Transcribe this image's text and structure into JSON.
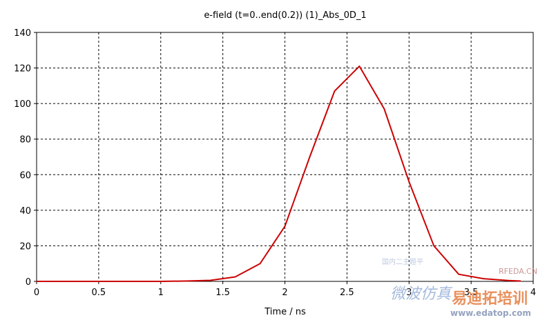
{
  "chart_data": {
    "type": "line",
    "title": "e-field (t=0..end(0.2)) (1)_Abs_0D_1",
    "xlabel": "Time / ns",
    "ylabel": "",
    "xlim": [
      0,
      4
    ],
    "ylim": [
      0,
      140
    ],
    "xticks": [
      "0",
      "0.5",
      "1",
      "1.5",
      "2",
      "2.5",
      "3",
      "3.5",
      "4"
    ],
    "yticks": [
      "0",
      "20",
      "40",
      "60",
      "80",
      "100",
      "120",
      "140"
    ],
    "grid": true,
    "series": [
      {
        "color": "#cc0000",
        "x": [
          0,
          0.5,
          1.0,
          1.2,
          1.4,
          1.6,
          1.8,
          2.0,
          2.2,
          2.4,
          2.6,
          2.8,
          3.0,
          3.2,
          3.4,
          3.6,
          3.8,
          3.9
        ],
        "y": [
          0,
          0,
          0,
          0.2,
          0.6,
          2.5,
          10,
          31,
          70,
          107,
          121,
          97,
          56,
          20,
          4,
          1.5,
          0.5,
          0.2
        ]
      }
    ]
  },
  "watermark": {
    "left_glyphs": "微波仿真",
    "small_text": "国内二主题平",
    "site_name": "RFEDA.CN",
    "brand_cn": "易迪拓培训",
    "url": "www.edatop.com"
  }
}
